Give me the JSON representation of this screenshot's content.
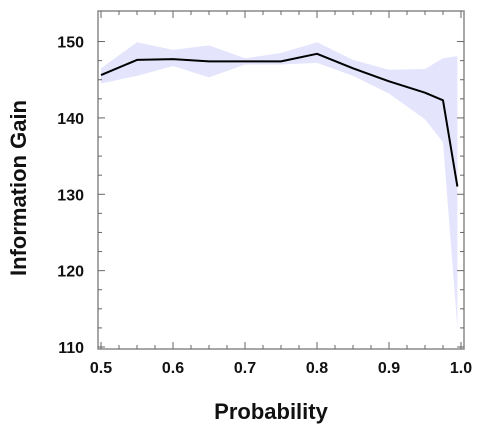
{
  "chart_data": {
    "type": "line",
    "title": "",
    "xlabel": "Probability",
    "ylabel": "Information Gain",
    "xlim": [
      0.5,
      1.0
    ],
    "ylim": [
      110,
      154
    ],
    "xticks": [
      0.5,
      0.6,
      0.7,
      0.8,
      0.9,
      1.0
    ],
    "xtick_labels": [
      "0.5",
      "0.6",
      "0.7",
      "0.8",
      "0.9",
      "1.0"
    ],
    "yticks": [
      110,
      120,
      130,
      140,
      150
    ],
    "ytick_labels": [
      "110",
      "120",
      "130",
      "140",
      "150"
    ],
    "grid": false,
    "series": [
      {
        "x": [
          0.5,
          0.55,
          0.6,
          0.65,
          0.7,
          0.75,
          0.8,
          0.85,
          0.9,
          0.95,
          0.975,
          0.995
        ],
        "values": [
          145.6,
          147.6,
          147.7,
          147.4,
          147.4,
          147.4,
          148.4,
          146.5,
          144.8,
          143.3,
          142.3,
          131.0
        ],
        "lower": [
          144.5,
          145.5,
          146.8,
          145.3,
          147.0,
          147.0,
          147.2,
          145.5,
          143.2,
          139.8,
          136.8,
          112.5
        ],
        "upper": [
          146.5,
          149.9,
          148.9,
          149.5,
          147.8,
          148.5,
          149.9,
          147.6,
          146.3,
          146.4,
          147.8,
          148.1
        ],
        "line_color": "#000000",
        "band_color": "#e4e4fd"
      }
    ]
  }
}
